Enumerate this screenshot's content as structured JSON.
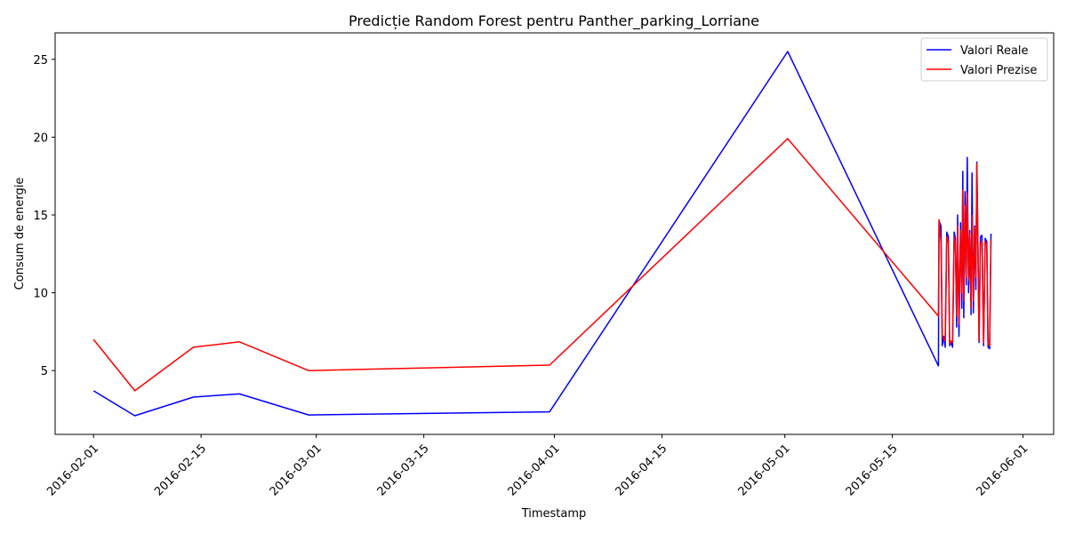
{
  "chart_data": {
    "type": "line",
    "title": "Predicție Random Forest pentru Panther_parking_Lorriane",
    "xlabel": "Timestamp",
    "ylabel": "Consum de energie",
    "xlim": [
      "2016-01-27",
      "2016-06-05"
    ],
    "ylim": [
      0.9,
      26.7
    ],
    "x_ticks": [
      "2016-02-01",
      "2016-02-15",
      "2016-03-01",
      "2016-03-15",
      "2016-04-01",
      "2016-04-15",
      "2016-05-01",
      "2016-05-15",
      "2016-06-01"
    ],
    "y_ticks": [
      5,
      10,
      15,
      20,
      25
    ],
    "legend_position": "top-right",
    "grid": false,
    "series": [
      {
        "name": "Valori Reale",
        "color": "#0000ff",
        "points": [
          [
            "2016-02-01 00:00",
            3.7
          ],
          [
            "2016-02-06 09:00",
            2.1
          ],
          [
            "2016-02-14 00:00",
            3.3
          ],
          [
            "2016-02-20 00:00",
            3.5
          ],
          [
            "2016-02-29 00:00",
            2.15
          ],
          [
            "2016-03-31 09:00",
            2.35
          ],
          [
            "2016-05-01 09:00",
            25.5
          ],
          [
            "2016-05-21 00:00",
            5.3
          ],
          [
            "2016-05-21 02:00",
            14.6
          ],
          [
            "2016-05-21 08:00",
            14.3
          ],
          [
            "2016-05-21 12:00",
            6.6
          ],
          [
            "2016-05-21 17:00",
            7.2
          ],
          [
            "2016-05-21 21:00",
            6.5
          ],
          [
            "2016-05-22 02:00",
            13.9
          ],
          [
            "2016-05-22 07:00",
            13.6
          ],
          [
            "2016-05-22 11:00",
            6.6
          ],
          [
            "2016-05-22 16:00",
            6.8
          ],
          [
            "2016-05-22 20:00",
            6.5
          ],
          [
            "2016-05-23 01:00",
            13.9
          ],
          [
            "2016-05-23 05:00",
            13.5
          ],
          [
            "2016-05-23 09:00",
            7.8
          ],
          [
            "2016-05-23 12:00",
            15.0
          ],
          [
            "2016-05-23 16:00",
            7.2
          ],
          [
            "2016-05-23 21:00",
            14.5
          ],
          [
            "2016-05-24 01:00",
            9.0
          ],
          [
            "2016-05-24 04:00",
            17.8
          ],
          [
            "2016-05-24 07:00",
            8.4
          ],
          [
            "2016-05-24 11:00",
            16.5
          ],
          [
            "2016-05-24 15:00",
            10.5
          ],
          [
            "2016-05-24 18:00",
            18.7
          ],
          [
            "2016-05-24 22:00",
            10.0
          ],
          [
            "2016-05-25 02:00",
            14.0
          ],
          [
            "2016-05-25 06:00",
            8.6
          ],
          [
            "2016-05-25 09:00",
            17.7
          ],
          [
            "2016-05-25 13:00",
            8.7
          ],
          [
            "2016-05-25 17:00",
            14.3
          ],
          [
            "2016-05-25 21:00",
            10.2
          ],
          [
            "2016-05-26 00:00",
            18.4
          ],
          [
            "2016-05-26 03:00",
            13.8
          ],
          [
            "2016-05-26 07:00",
            6.8
          ],
          [
            "2016-05-26 11:00",
            13.6
          ],
          [
            "2016-05-26 16:00",
            13.7
          ],
          [
            "2016-05-26 21:00",
            6.6
          ],
          [
            "2016-05-27 02:00",
            13.5
          ],
          [
            "2016-05-27 07:00",
            13.3
          ],
          [
            "2016-05-27 11:00",
            6.5
          ],
          [
            "2016-05-27 16:00",
            6.4
          ],
          [
            "2016-05-27 20:00",
            13.8
          ]
        ]
      },
      {
        "name": "Valori Prezise",
        "color": "#ff0000",
        "points": [
          [
            "2016-02-01 00:00",
            7.0
          ],
          [
            "2016-02-06 09:00",
            3.7
          ],
          [
            "2016-02-14 00:00",
            6.5
          ],
          [
            "2016-02-20 00:00",
            6.85
          ],
          [
            "2016-02-29 00:00",
            5.0
          ],
          [
            "2016-03-31 09:00",
            5.35
          ],
          [
            "2016-05-01 09:00",
            19.9
          ],
          [
            "2016-05-21 00:00",
            8.5
          ],
          [
            "2016-05-21 02:00",
            14.7
          ],
          [
            "2016-05-21 08:00",
            13.2
          ],
          [
            "2016-05-21 12:00",
            7.3
          ],
          [
            "2016-05-21 17:00",
            7.0
          ],
          [
            "2016-05-21 21:00",
            6.9
          ],
          [
            "2016-05-22 02:00",
            13.6
          ],
          [
            "2016-05-22 07:00",
            13.2
          ],
          [
            "2016-05-22 11:00",
            6.7
          ],
          [
            "2016-05-22 16:00",
            6.9
          ],
          [
            "2016-05-22 20:00",
            6.8
          ],
          [
            "2016-05-23 01:00",
            13.6
          ],
          [
            "2016-05-23 05:00",
            13.1
          ],
          [
            "2016-05-23 09:00",
            8.5
          ],
          [
            "2016-05-23 12:00",
            14.3
          ],
          [
            "2016-05-23 16:00",
            8.0
          ],
          [
            "2016-05-23 21:00",
            14.0
          ],
          [
            "2016-05-24 01:00",
            10.0
          ],
          [
            "2016-05-24 04:00",
            16.6
          ],
          [
            "2016-05-24 07:00",
            9.5
          ],
          [
            "2016-05-24 11:00",
            15.6
          ],
          [
            "2016-05-24 15:00",
            11.0
          ],
          [
            "2016-05-24 18:00",
            16.4
          ],
          [
            "2016-05-24 22:00",
            10.8
          ],
          [
            "2016-05-25 02:00",
            13.8
          ],
          [
            "2016-05-25 06:00",
            9.0
          ],
          [
            "2016-05-25 09:00",
            15.0
          ],
          [
            "2016-05-25 13:00",
            9.5
          ],
          [
            "2016-05-25 17:00",
            14.2
          ],
          [
            "2016-05-25 21:00",
            11.0
          ],
          [
            "2016-05-26 00:00",
            18.3
          ],
          [
            "2016-05-26 03:00",
            13.5
          ],
          [
            "2016-05-26 07:00",
            6.9
          ],
          [
            "2016-05-26 11:00",
            13.2
          ],
          [
            "2016-05-26 16:00",
            13.3
          ],
          [
            "2016-05-26 21:00",
            6.8
          ],
          [
            "2016-05-27 02:00",
            13.3
          ],
          [
            "2016-05-27 07:00",
            13.1
          ],
          [
            "2016-05-27 11:00",
            6.7
          ],
          [
            "2016-05-27 16:00",
            6.6
          ],
          [
            "2016-05-27 20:00",
            13.4
          ]
        ]
      }
    ]
  }
}
